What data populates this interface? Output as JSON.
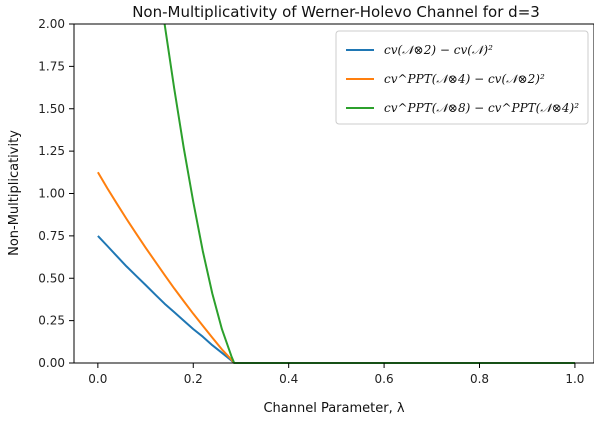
{
  "chart_data": {
    "type": "line",
    "title": "Non-Multiplicativity of Werner-Holevo Channel for d=3",
    "xlabel": "Channel Parameter, λ",
    "ylabel": "Non-Multiplicativity",
    "xlim": [
      -0.05,
      1.04
    ],
    "ylim": [
      0.0,
      2.0
    ],
    "xticks": [
      0.0,
      0.2,
      0.4,
      0.6,
      0.8,
      1.0
    ],
    "xtick_labels": [
      "0.0",
      "0.2",
      "0.4",
      "0.6",
      "0.8",
      "1.0"
    ],
    "yticks": [
      0.0,
      0.25,
      0.5,
      0.75,
      1.0,
      1.25,
      1.5,
      1.75,
      2.0
    ],
    "ytick_labels": [
      "0.00",
      "0.25",
      "0.50",
      "0.75",
      "1.00",
      "1.25",
      "1.50",
      "1.75",
      "2.00"
    ],
    "grid": false,
    "legend_position": "top-right",
    "series": [
      {
        "name": "cv(𝒩⊗2) − cv(𝒩)²",
        "color": "#1f77b4",
        "x": [
          0.0,
          0.02,
          0.04,
          0.06,
          0.08,
          0.1,
          0.12,
          0.14,
          0.16,
          0.18,
          0.2,
          0.22,
          0.24,
          0.26,
          0.28,
          0.2857,
          0.35,
          0.5,
          0.7,
          0.9,
          1.0
        ],
        "y": [
          0.75,
          0.69,
          0.63,
          0.57,
          0.515,
          0.46,
          0.405,
          0.35,
          0.3,
          0.25,
          0.2,
          0.155,
          0.105,
          0.06,
          0.015,
          0.0,
          0.0,
          0.0,
          0.0,
          0.0,
          0.0
        ]
      },
      {
        "name": "cv^PPT(𝒩⊗4) − cv(𝒩⊗2)²",
        "color": "#ff7f0e",
        "x": [
          0.0,
          0.02,
          0.04,
          0.06,
          0.08,
          0.1,
          0.12,
          0.14,
          0.16,
          0.18,
          0.2,
          0.22,
          0.24,
          0.26,
          0.28,
          0.2857,
          0.35,
          0.5,
          0.7,
          0.9,
          1.0
        ],
        "y": [
          1.125,
          1.03,
          0.94,
          0.85,
          0.765,
          0.68,
          0.6,
          0.52,
          0.44,
          0.365,
          0.29,
          0.22,
          0.15,
          0.08,
          0.02,
          0.0,
          0.0,
          0.0,
          0.0,
          0.0,
          0.0
        ]
      },
      {
        "name": "cv^PPT(𝒩⊗8) − cv^PPT(𝒩⊗4)²",
        "color": "#2ca02c",
        "x": [
          0.14,
          0.16,
          0.18,
          0.2,
          0.22,
          0.24,
          0.26,
          0.28,
          0.2857,
          0.35,
          0.5,
          0.7,
          0.9,
          1.0
        ],
        "y": [
          2.0,
          1.62,
          1.27,
          0.95,
          0.66,
          0.41,
          0.2,
          0.04,
          0.0,
          0.0,
          0.0,
          0.0,
          0.0,
          0.0
        ]
      }
    ]
  }
}
